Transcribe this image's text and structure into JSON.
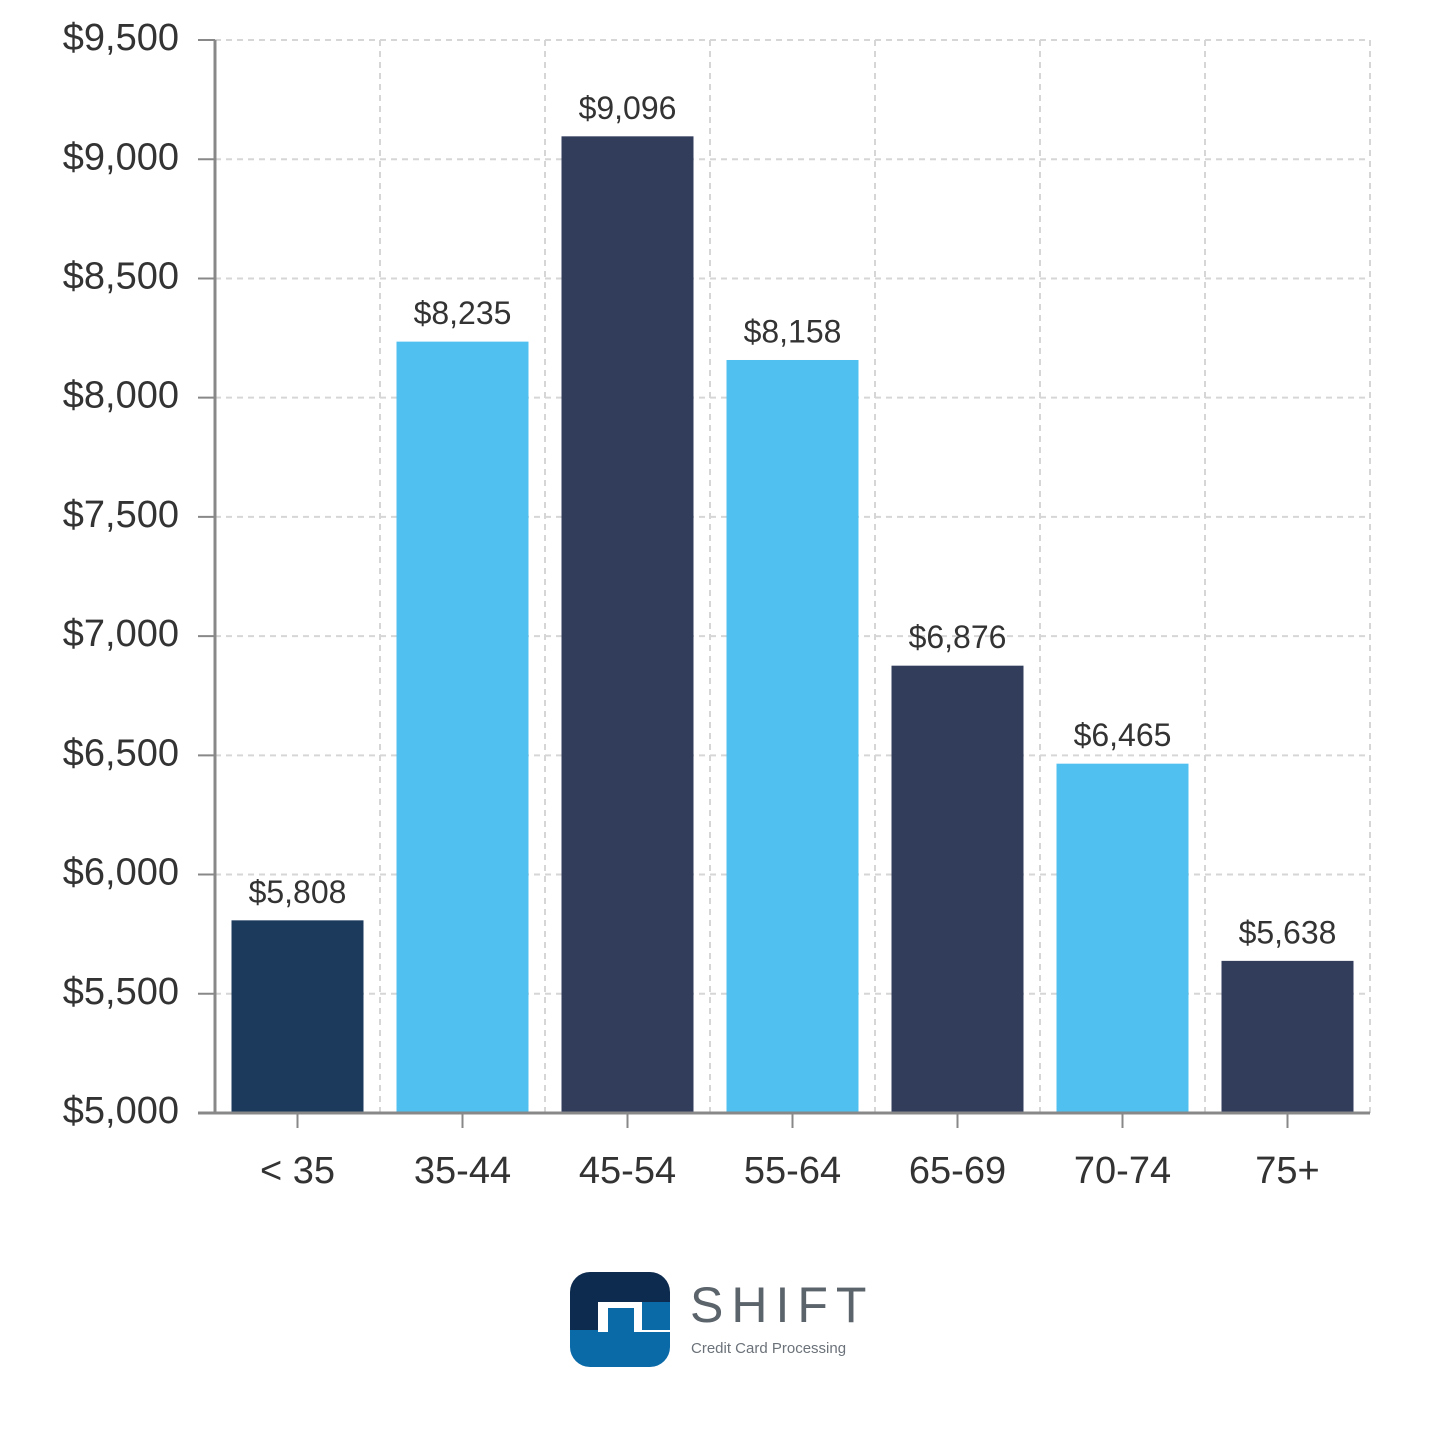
{
  "chart_data": {
    "type": "bar",
    "categories": [
      "< 35",
      "35-44",
      "45-54",
      "55-64",
      "65-69",
      "70-74",
      "75+"
    ],
    "values": [
      5808,
      8235,
      9096,
      8158,
      6876,
      6465,
      5638
    ],
    "value_labels": [
      "$5,808",
      "$8,235",
      "$9,096",
      "$8,158",
      "$6,876",
      "$6,465",
      "$5,638"
    ],
    "colors": [
      "#1b3a5c",
      "#4fc0ef",
      "#323d5c",
      "#4fc0ef",
      "#323d5c",
      "#4fc0ef",
      "#323d5c"
    ],
    "ylim": [
      5000,
      9500
    ],
    "yticks": [
      {
        "value": 5000,
        "label": "$5,000"
      },
      {
        "value": 5500,
        "label": "$5,500"
      },
      {
        "value": 6000,
        "label": "$6,000"
      },
      {
        "value": 6500,
        "label": "$6,500"
      },
      {
        "value": 7000,
        "label": "$7,000"
      },
      {
        "value": 7500,
        "label": "$7,500"
      },
      {
        "value": 8000,
        "label": "$8,000"
      },
      {
        "value": 8500,
        "label": "$8,500"
      },
      {
        "value": 9000,
        "label": "$9,000"
      },
      {
        "value": 9500,
        "label": "$9,500"
      }
    ],
    "grid": true
  },
  "logo": {
    "name": "SHIFT",
    "tagline": "Credit Card Processing"
  }
}
